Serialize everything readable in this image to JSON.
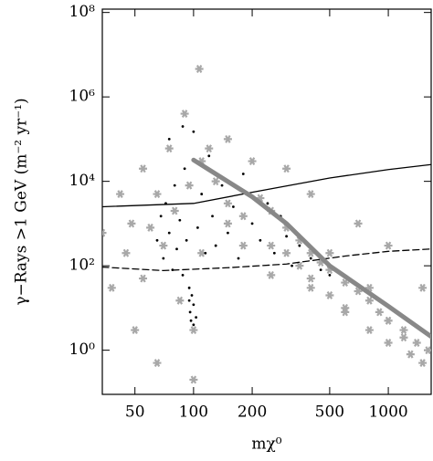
{
  "chart_data": {
    "type": "scatter",
    "xlabel": "mχ⁰",
    "ylabel": "γ−Rays >1 GeV (m⁻² yr⁻¹)",
    "xlog": true,
    "ylog": true,
    "xlim": [
      34,
      1660
    ],
    "ylim": [
      0.09,
      120000000
    ],
    "xticks": [
      50,
      100,
      200,
      500,
      1000
    ],
    "yticks": [
      {
        "value": 1,
        "label": "10⁰"
      },
      {
        "value": 100,
        "label": "10²"
      },
      {
        "value": 10000,
        "label": "10⁴"
      },
      {
        "value": 1000000,
        "label": "10⁶"
      },
      {
        "value": 100000000,
        "label": "10⁸"
      }
    ],
    "series": [
      {
        "color": "#a8a8a8",
        "marker": "star",
        "x": [
          34,
          38,
          42,
          45,
          48,
          50,
          55,
          55,
          60,
          65,
          65,
          70,
          75,
          80,
          85,
          90,
          95,
          100,
          100,
          107,
          110,
          120,
          150,
          150,
          180,
          200,
          250,
          300,
          300,
          400,
          400,
          500,
          600,
          700,
          800,
          1000,
          1000,
          1200,
          1500,
          1500,
          300,
          350,
          400,
          450,
          500,
          600,
          700,
          800,
          900,
          1000,
          1200,
          1400,
          1600,
          250,
          220,
          400,
          600,
          800,
          1000,
          1300,
          500,
          350,
          250,
          180,
          150,
          130,
          110
        ],
        "values": [
          600,
          30,
          5000,
          200,
          1000,
          3,
          20000,
          50,
          800,
          5000,
          0.5,
          300,
          60000,
          2000,
          15,
          400000,
          8000,
          3,
          0.2,
          4600000,
          200,
          60000,
          1000,
          100000,
          300,
          30000,
          60,
          20000,
          200,
          5000,
          30,
          200,
          10,
          1000,
          30,
          5,
          300,
          2,
          0.5,
          30,
          800,
          400,
          200,
          120,
          80,
          40,
          25,
          15,
          8,
          5,
          3,
          1.5,
          1,
          2000,
          4000,
          50,
          8,
          3,
          1.5,
          0.8,
          20,
          100,
          300,
          1500,
          3000,
          10000,
          30000
        ]
      },
      {
        "color": "#000000",
        "marker": "dot",
        "x": [
          65,
          68,
          70,
          72,
          75,
          78,
          80,
          82,
          85,
          88,
          90,
          92,
          95,
          96,
          97,
          98,
          100,
          100,
          103,
          95,
          100,
          105,
          110,
          115,
          120,
          125,
          130,
          140,
          150,
          160,
          170,
          180,
          200,
          220,
          240,
          260,
          280,
          300,
          320,
          350,
          400,
          450,
          500,
          88,
          75
        ],
        "values": [
          400,
          1500,
          150,
          3000,
          600,
          80,
          8000,
          250,
          1200,
          60,
          20000,
          400,
          15,
          8,
          5,
          20,
          4,
          12,
          6,
          30,
          150000,
          800,
          5000,
          200,
          40000,
          1500,
          300,
          8000,
          600,
          2500,
          150,
          15000,
          1000,
          400,
          3000,
          200,
          1500,
          500,
          100,
          300,
          150,
          80,
          60,
          200000,
          100000
        ]
      },
      {
        "color": "#000000",
        "marker": "line",
        "style": "solid",
        "width": 1.3,
        "x": [
          34,
          100,
          200,
          500,
          1000,
          1660
        ],
        "values": [
          2500,
          3000,
          5500,
          12000,
          19000,
          25000
        ]
      },
      {
        "color": "#000000",
        "marker": "line",
        "style": "dashed",
        "width": 1.3,
        "x": [
          34,
          70,
          150,
          300,
          600,
          1000,
          1660
        ],
        "values": [
          93,
          77,
          90,
          110,
          170,
          220,
          250
        ]
      },
      {
        "color": "#888888",
        "marker": "line",
        "style": "solid",
        "width": 5,
        "x": [
          100,
          200,
          300,
          500,
          1000,
          1660
        ],
        "values": [
          32000,
          4300,
          1000,
          100,
          11,
          2.1
        ]
      }
    ]
  }
}
